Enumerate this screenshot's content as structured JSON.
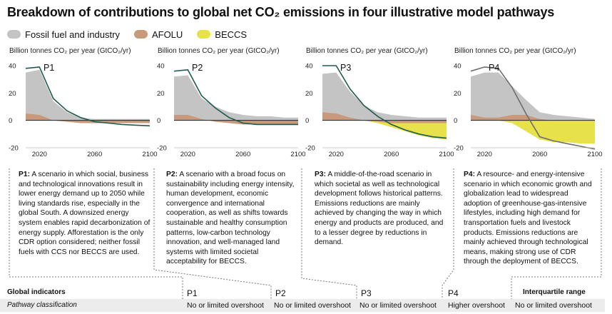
{
  "header": {
    "title": "Breakdown of contributions to global net CO₂ emissions in four illustrative model pathways"
  },
  "legend": [
    {
      "label": "Fossil fuel and industry",
      "color": "#c4c4c4"
    },
    {
      "label": "AFOLU",
      "color": "#c8997a"
    },
    {
      "label": "BECCS",
      "color": "#e8e24a"
    }
  ],
  "colors": {
    "net_line": "#1e5b4f",
    "net_line_p4": "#6e6e6e",
    "zero_line": "#222222"
  },
  "chart_data": [
    {
      "type": "area",
      "name": "P1",
      "ylabel": "Billion tonnes CO₂ per year (GtCO₂/yr)",
      "ylim": [
        -20,
        40
      ],
      "yticks": [
        "40",
        "20",
        "0",
        "-20"
      ],
      "yticks_values": [
        40,
        20,
        0,
        -20
      ],
      "xlim": [
        2010,
        2100
      ],
      "xticks": [
        "2020",
        "2060",
        "2100"
      ],
      "xticks_values": [
        2020,
        2060,
        2100
      ],
      "series": [
        {
          "name": "Fossil fuel and industry",
          "x": [
            2010,
            2020,
            2030,
            2040,
            2050,
            2060,
            2070,
            2080,
            2090,
            2100
          ],
          "values": [
            35,
            37,
            14,
            6,
            2,
            1,
            1,
            1,
            1,
            1
          ]
        },
        {
          "name": "AFOLU",
          "x": [
            2010,
            2020,
            2030,
            2040,
            2050,
            2060,
            2070,
            2080,
            2090,
            2100
          ],
          "values": [
            5,
            4,
            0,
            -1,
            -2,
            -2,
            -2,
            -2,
            -2,
            -2
          ]
        },
        {
          "name": "BECCS",
          "x": [
            2010,
            2020,
            2030,
            2040,
            2050,
            2060,
            2070,
            2080,
            2090,
            2100
          ],
          "values": [
            0,
            0,
            0,
            0,
            0,
            0,
            0,
            0,
            0,
            0
          ]
        },
        {
          "name": "Net",
          "x": [
            2010,
            2020,
            2030,
            2040,
            2050,
            2060,
            2070,
            2080,
            2090,
            2100
          ],
          "values": [
            38,
            39,
            16,
            7,
            2,
            -1,
            -2,
            -3,
            -3.5,
            -4
          ]
        }
      ]
    },
    {
      "type": "area",
      "name": "P2",
      "ylabel": "Billion tonnes CO₂ per year (GtCO₂/yr)",
      "ylim": [
        -20,
        40
      ],
      "yticks": [
        "40",
        "20",
        "0",
        "-20"
      ],
      "yticks_values": [
        40,
        20,
        0,
        -20
      ],
      "xlim": [
        2010,
        2100
      ],
      "xticks": [
        "2020",
        "2060",
        "2100"
      ],
      "xticks_values": [
        2020,
        2060,
        2100
      ],
      "series": [
        {
          "name": "Fossil fuel and industry",
          "x": [
            2010,
            2020,
            2030,
            2040,
            2050,
            2060,
            2070,
            2080,
            2090,
            2100
          ],
          "values": [
            32,
            33,
            16,
            10,
            6,
            4,
            3,
            3,
            2,
            2
          ]
        },
        {
          "name": "AFOLU",
          "x": [
            2010,
            2020,
            2030,
            2040,
            2050,
            2060,
            2070,
            2080,
            2090,
            2100
          ],
          "values": [
            4,
            4,
            1,
            -1,
            -2,
            -3,
            -3,
            -3,
            -3,
            -3
          ]
        },
        {
          "name": "BECCS",
          "x": [
            2010,
            2020,
            2030,
            2040,
            2050,
            2060,
            2070,
            2080,
            2090,
            2100
          ],
          "values": [
            0,
            0,
            0,
            0,
            -0.5,
            -1,
            -1,
            -1,
            -1,
            -1
          ]
        },
        {
          "name": "Net",
          "x": [
            2010,
            2020,
            2030,
            2040,
            2050,
            2060,
            2070,
            2080,
            2090,
            2100
          ],
          "values": [
            36,
            37,
            18,
            9,
            2,
            -2,
            -3,
            -3,
            -3,
            -3
          ]
        }
      ]
    },
    {
      "type": "area",
      "name": "P3",
      "ylabel": "Billion tonnes CO₂ per year (GtCO₂/yr)",
      "ylim": [
        -20,
        40
      ],
      "yticks": [
        "40",
        "20",
        "0",
        "-20"
      ],
      "yticks_values": [
        40,
        20,
        0,
        -20
      ],
      "xlim": [
        2010,
        2100
      ],
      "xticks": [
        "2020",
        "2060",
        "2100"
      ],
      "xticks_values": [
        2020,
        2060,
        2100
      ],
      "series": [
        {
          "name": "Fossil fuel and industry",
          "x": [
            2010,
            2020,
            2030,
            2040,
            2050,
            2060,
            2070,
            2080,
            2090,
            2100
          ],
          "values": [
            34,
            35,
            21,
            11,
            6,
            4,
            3,
            2,
            2,
            2
          ]
        },
        {
          "name": "AFOLU",
          "x": [
            2010,
            2020,
            2030,
            2040,
            2050,
            2060,
            2070,
            2080,
            2090,
            2100
          ],
          "values": [
            6,
            5,
            2,
            0,
            -1,
            -2,
            -2,
            -2,
            -2,
            -2
          ]
        },
        {
          "name": "BECCS",
          "x": [
            2010,
            2020,
            2030,
            2040,
            2050,
            2060,
            2070,
            2080,
            2090,
            2100
          ],
          "values": [
            0,
            0,
            0,
            0,
            -2,
            -5,
            -8,
            -11,
            -13,
            -14
          ]
        },
        {
          "name": "Net",
          "x": [
            2010,
            2020,
            2030,
            2040,
            2050,
            2060,
            2070,
            2080,
            2090,
            2100
          ],
          "values": [
            40,
            40,
            23,
            11,
            3,
            -3,
            -7,
            -10,
            -12,
            -13
          ]
        }
      ]
    },
    {
      "type": "area",
      "name": "P4",
      "ylabel": "Billion tonnes CO₂ per year (GtCO₂/yr)",
      "ylim": [
        -20,
        40
      ],
      "yticks": [
        "40",
        "20",
        "0",
        "-20"
      ],
      "yticks_values": [
        40,
        20,
        0,
        -20
      ],
      "xlim": [
        2010,
        2100
      ],
      "xticks": [
        "2020",
        "2060",
        "2100"
      ],
      "xticks_values": [
        2020,
        2060,
        2100
      ],
      "series": [
        {
          "name": "Fossil fuel and industry",
          "x": [
            2010,
            2020,
            2030,
            2040,
            2050,
            2060,
            2070,
            2080,
            2090,
            2100
          ],
          "values": [
            32,
            35,
            35,
            25,
            15,
            6,
            4,
            3,
            2,
            1
          ]
        },
        {
          "name": "AFOLU",
          "x": [
            2010,
            2020,
            2030,
            2040,
            2050,
            2060,
            2070,
            2080,
            2090,
            2100
          ],
          "values": [
            4,
            2,
            2,
            4,
            4,
            1,
            0,
            0,
            0,
            0
          ]
        },
        {
          "name": "BECCS",
          "x": [
            2010,
            2020,
            2030,
            2040,
            2050,
            2060,
            2070,
            2080,
            2090,
            2100
          ],
          "values": [
            0,
            0,
            0,
            -2,
            -8,
            -14,
            -16,
            -16,
            -17,
            -17
          ]
        },
        {
          "name": "Net",
          "x": [
            2010,
            2020,
            2030,
            2040,
            2050,
            2060,
            2070,
            2080,
            2090,
            2100
          ],
          "values": [
            36,
            39,
            38,
            24,
            5,
            -12,
            -15,
            -17,
            -19,
            -21
          ]
        }
      ]
    }
  ],
  "descriptions": [
    {
      "label": "P1:",
      "text": " A scenario in which social, business and technological innovations result in lower energy demand up to 2050 while living standards rise, especially in the global South. A downsized energy system enables rapid decarbonization of energy supply. Afforestation is the only CDR option considered; neither fossil fuels with CCS nor BECCS are used."
    },
    {
      "label": "P2:",
      "text": " A scenario with a broad focus on sustainability including energy intensity, human development, economic convergence and international cooperation, as well as shifts towards sustainable and healthy consumption patterns, low-carbon technology innovation, and well-managed land systems with limited societal acceptability for BECCS."
    },
    {
      "label": "P3:",
      "text": " A middle-of-the-road scenario in which societal as well as technological development follows historical patterns. Emissions reductions are mainly achieved by changing the way in which energy and products are produced, and to a lesser degree by reductions in demand."
    },
    {
      "label": "P4:",
      "text": " A resource- and energy-intensive scenario in which economic growth and globalization lead to widespread adoption of greenhouse-gas-intensive lifestyles, including high demand for transportation fuels and livestock products. Emissions reductions are mainly achieved through technological means, making strong use of CDR through the deployment of BECCS."
    }
  ],
  "indicators": {
    "title": "Global indicators",
    "columns": [
      "P1",
      "P2",
      "P3",
      "P4"
    ],
    "iqr_label": "Interquartile range",
    "rows": [
      {
        "label": "Pathway classification",
        "values": [
          "No or limited overshoot",
          "No or limited overshoot",
          "No or limited overshoot",
          "Higher overshoot",
          "No or limited overshoot"
        ]
      }
    ]
  }
}
